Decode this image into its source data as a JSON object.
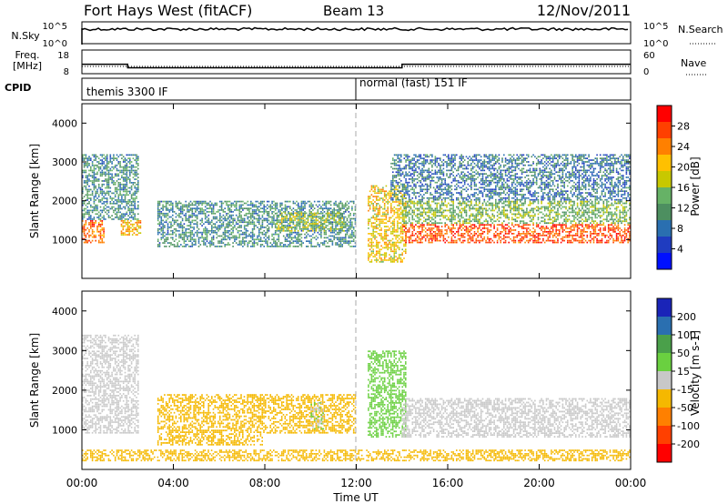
{
  "header": {
    "title": "Fort Hays West (fitACF)",
    "beam": "Beam 13",
    "date": "12/Nov/2011"
  },
  "noise_panel": {
    "left_label": "N.Sky",
    "left_ticks": [
      "10^5",
      "10^0"
    ],
    "right_label": "N.Search",
    "right_ticks": [
      "10^5",
      "10^0"
    ]
  },
  "freq_panel": {
    "left_label_line1": "Freq.",
    "left_label_line2": "[MHz]",
    "left_ticks": [
      "18",
      "8"
    ],
    "right_label": "Nave",
    "right_ticks": [
      "60",
      "0"
    ]
  },
  "cpid_panel": {
    "label": "CPID",
    "segments": [
      {
        "text": "themis 3300 IF",
        "start_hour": 0
      },
      {
        "text": "normal (fast) 151 IF",
        "start_hour": 12
      }
    ]
  },
  "time_axis": {
    "xlabel": "Time UT",
    "ticks": [
      "00:00",
      "04:00",
      "08:00",
      "12:00",
      "16:00",
      "20:00",
      "00:00"
    ]
  },
  "power_colorbar": {
    "label": "Power [dB]",
    "ticks": [
      "28",
      "24",
      "20",
      "16",
      "12",
      "8",
      "4"
    ],
    "colors": [
      "#ff0000",
      "#ff4000",
      "#ff8000",
      "#ffc000",
      "#c8c800",
      "#66b266",
      "#4d8f60",
      "#2a6fb0",
      "#1f3cc0",
      "#0010ff"
    ]
  },
  "velocity_colorbar": {
    "label": "Velocity [m s-1]",
    "ticks": [
      "200",
      "100",
      "50",
      "15",
      "-15",
      "-50",
      "-100",
      "-200"
    ],
    "colors": [
      "#1a24b8",
      "#2a6fb0",
      "#4aa04a",
      "#6ad040",
      "#c8c8c8",
      "#f5b800",
      "#ff8000",
      "#ff4000",
      "#ff0000"
    ]
  },
  "chart_data": [
    {
      "type": "line",
      "title": "",
      "series": [
        {
          "name": "N.Sky",
          "x": [
            0,
            1,
            4,
            8,
            12,
            16,
            20,
            24
          ],
          "values": [
            30000,
            30000,
            30000,
            30000,
            30000,
            30000,
            30000,
            30000
          ]
        }
      ],
      "xlim": [
        0,
        24
      ],
      "ylabel": "N.Sky",
      "yscale": "log"
    },
    {
      "type": "line",
      "title": "",
      "series": [
        {
          "name": "Freq.",
          "x": [
            0,
            2,
            2,
            14,
            14,
            24
          ],
          "values": [
            12,
            12,
            10.5,
            10.5,
            12,
            12
          ]
        },
        {
          "name": "Nave",
          "x": [
            0,
            24
          ],
          "values": [
            18,
            18
          ]
        }
      ],
      "xlim": [
        0,
        24
      ],
      "ylim": [
        8,
        18
      ],
      "ylabel": "Freq. [MHz]"
    },
    {
      "type": "heatmap",
      "title": "",
      "variable": "Power",
      "units": "dB",
      "xlabel": "Time UT",
      "ylabel": "Slant Range [km]",
      "xlim": [
        0,
        24
      ],
      "ylim": [
        0,
        4500
      ],
      "yticks": [
        1000,
        2000,
        3000,
        4000
      ],
      "clim": [
        0,
        32
      ],
      "echo_regions": [
        {
          "t0": 0.0,
          "t1": 1.0,
          "r0": 900,
          "r1": 1500,
          "value": 26
        },
        {
          "t0": 0.0,
          "t1": 2.5,
          "r0": 1500,
          "r1": 3200,
          "value": 10
        },
        {
          "t0": 1.7,
          "t1": 2.6,
          "r0": 1100,
          "r1": 1500,
          "value": 22
        },
        {
          "t0": 3.3,
          "t1": 12.0,
          "r0": 800,
          "r1": 2000,
          "value": 10
        },
        {
          "t0": 8.5,
          "t1": 11.5,
          "r0": 1200,
          "r1": 1700,
          "value": 16
        },
        {
          "t0": 12.5,
          "t1": 14.2,
          "r0": 400,
          "r1": 2400,
          "value": 20
        },
        {
          "t0": 14.0,
          "t1": 24.0,
          "r0": 900,
          "r1": 1400,
          "value": 28
        },
        {
          "t0": 14.0,
          "t1": 24.0,
          "r0": 1400,
          "r1": 2000,
          "value": 14
        },
        {
          "t0": 13.5,
          "t1": 24.0,
          "r0": 2000,
          "r1": 3200,
          "value": 8
        }
      ]
    },
    {
      "type": "heatmap",
      "title": "",
      "variable": "Velocity",
      "units": "m s-1",
      "xlabel": "Time UT",
      "ylabel": "Slant Range [km]",
      "xlim": [
        0,
        24
      ],
      "ylim": [
        0,
        4500
      ],
      "yticks": [
        1000,
        2000,
        3000,
        4000
      ],
      "clim": [
        -250,
        250
      ],
      "echo_regions": [
        {
          "t0": 0.0,
          "t1": 2.5,
          "r0": 900,
          "r1": 3400,
          "value": 0
        },
        {
          "t0": 3.3,
          "t1": 8.0,
          "r0": 600,
          "r1": 1900,
          "value": -60
        },
        {
          "t0": 8.0,
          "t1": 12.0,
          "r0": 900,
          "r1": 1900,
          "value": -80
        },
        {
          "t0": 10.0,
          "t1": 10.6,
          "r0": 1000,
          "r1": 1700,
          "value": 30
        },
        {
          "t0": 12.5,
          "t1": 14.2,
          "r0": 800,
          "r1": 3000,
          "value": 40
        },
        {
          "t0": 14.0,
          "t1": 24.0,
          "r0": 800,
          "r1": 1800,
          "value": 0
        },
        {
          "t0": 0.0,
          "t1": 24.0,
          "r0": 200,
          "r1": 500,
          "value": -60
        }
      ]
    }
  ]
}
